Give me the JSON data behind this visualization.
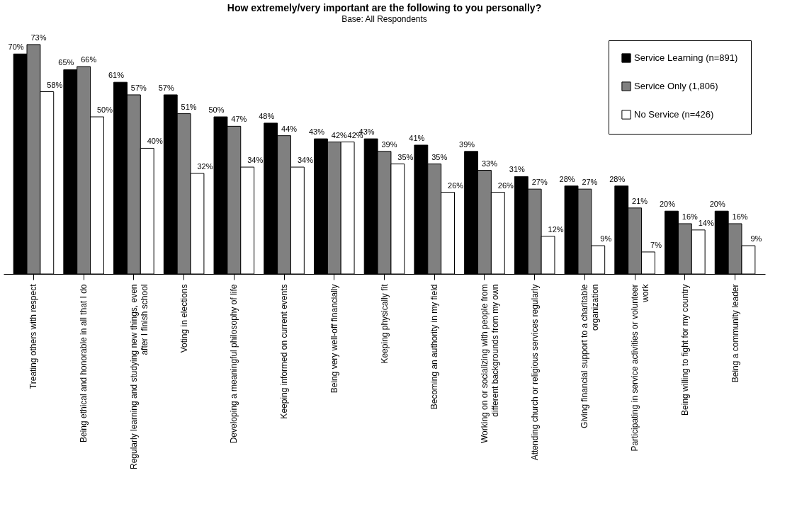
{
  "chart_data": {
    "type": "bar",
    "title": "How extremely/very important are the following to you personally?",
    "subtitle": "Base: All Respondents",
    "categories": [
      "Treating others with respect",
      "Being ethical and honorable in all that I do",
      "Regularly learning and studying new things, even after I finish school",
      "Voting in elections",
      "Developing a meaningful philosophy of life",
      "Keeping informed on current events",
      "Being very well-off financially",
      "Keeping physically fit",
      "Becoming an authority in my field",
      "Working on or socializing with people from different backgrounds from my own",
      "Attending church or religious services regularly",
      "Giving financial support to a charitable organization",
      "Participating in service activities or volunteer work",
      "Being willing to fight for my country",
      "Being a community leader"
    ],
    "series": [
      {
        "name": "Service Learning (n=891)",
        "color": "#000000",
        "values": [
          70,
          65,
          61,
          57,
          50,
          48,
          43,
          43,
          41,
          39,
          31,
          28,
          28,
          20,
          20
        ],
        "value_labels": [
          "70%",
          "65%",
          "61%",
          "57%",
          "50%",
          "48%",
          "43%",
          "43%",
          "41%",
          "39%",
          "31%",
          "28%",
          "28%",
          "20%",
          "20%"
        ]
      },
      {
        "name": "Service Only (1,806)",
        "color": "#808080",
        "values": [
          73,
          66,
          57,
          51,
          47,
          44,
          42,
          39,
          35,
          33,
          27,
          27,
          21,
          16,
          16
        ],
        "value_labels": [
          "73%",
          "66%",
          "57%",
          "51%",
          "47%",
          "44%",
          "42%",
          "39%",
          "35%",
          "33%",
          "27%",
          "27%",
          "21%",
          "16%",
          "16%"
        ]
      },
      {
        "name": "No Service (n=426)",
        "color": "#ffffff",
        "values": [
          58,
          50,
          40,
          32,
          34,
          34,
          42,
          35,
          26,
          26,
          12,
          9,
          7,
          14,
          9
        ],
        "value_labels": [
          "58%",
          "50%",
          "40%",
          "32%",
          "34%",
          "34%",
          "42%",
          "35%",
          "26%",
          "26%",
          "12%",
          "9%",
          "7%",
          "14%",
          "9%"
        ]
      }
    ],
    "legend": "top right",
    "grid": false
  }
}
